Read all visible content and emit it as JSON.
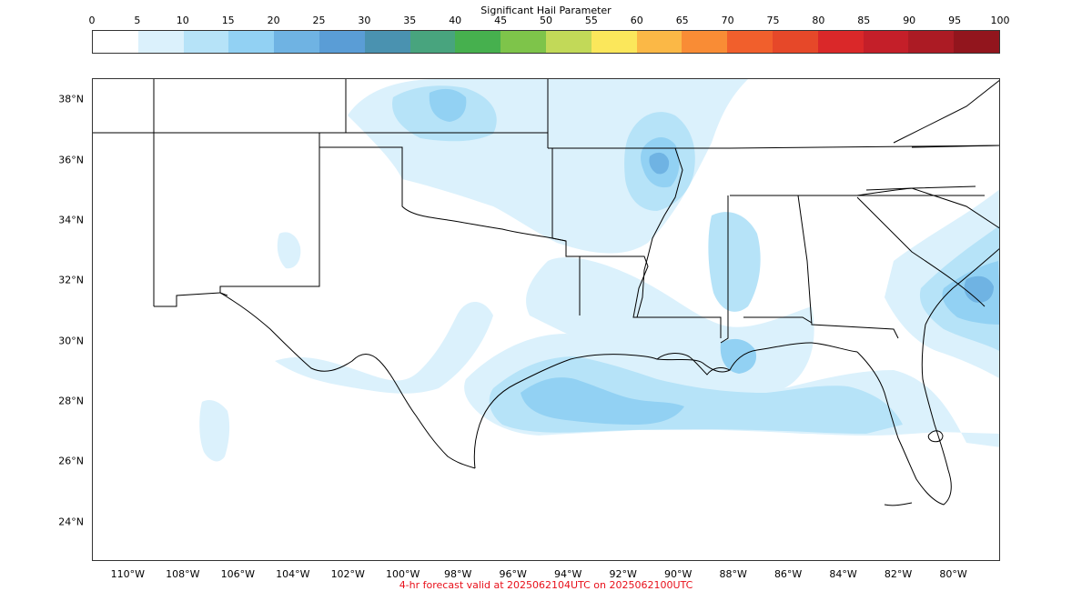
{
  "colorbar": {
    "title": "Significant Hail Parameter",
    "ticks": [
      "0",
      "5",
      "10",
      "15",
      "20",
      "25",
      "30",
      "35",
      "40",
      "45",
      "50",
      "55",
      "60",
      "65",
      "70",
      "75",
      "80",
      "85",
      "90",
      "95",
      "100"
    ],
    "colors": [
      "#ffffff",
      "#dbf1fc",
      "#b6e3f8",
      "#92d1f3",
      "#6fb3e3",
      "#5a9dd6",
      "#4a92b0",
      "#48a47e",
      "#46b04e",
      "#7ec44a",
      "#c2d958",
      "#fbe75b",
      "#fbb846",
      "#f98c35",
      "#f15f2c",
      "#e64829",
      "#da2829",
      "#c41f29",
      "#ac1b24",
      "#92151d"
    ]
  },
  "map": {
    "lat_labels": [
      {
        "lat": 38,
        "text": "38°N"
      },
      {
        "lat": 36,
        "text": "36°N"
      },
      {
        "lat": 34,
        "text": "34°N"
      },
      {
        "lat": 32,
        "text": "32°N"
      },
      {
        "lat": 30,
        "text": "30°N"
      },
      {
        "lat": 28,
        "text": "28°N"
      },
      {
        "lat": 26,
        "text": "26°N"
      },
      {
        "lat": 24,
        "text": "24°N"
      }
    ],
    "lon_labels": [
      {
        "lon": -110,
        "text": "110°W"
      },
      {
        "lon": -108,
        "text": "108°W"
      },
      {
        "lon": -106,
        "text": "106°W"
      },
      {
        "lon": -104,
        "text": "104°W"
      },
      {
        "lon": -102,
        "text": "102°W"
      },
      {
        "lon": -100,
        "text": "100°W"
      },
      {
        "lon": -98,
        "text": "98°W"
      },
      {
        "lon": -96,
        "text": "96°W"
      },
      {
        "lon": -94,
        "text": "94°W"
      },
      {
        "lon": -92,
        "text": "92°W"
      },
      {
        "lon": -90,
        "text": "90°W"
      },
      {
        "lon": -88,
        "text": "88°W"
      },
      {
        "lon": -86,
        "text": "86°W"
      },
      {
        "lon": -84,
        "text": "84°W"
      },
      {
        "lon": -82,
        "text": "82°W"
      },
      {
        "lon": -80,
        "text": "80°W"
      }
    ],
    "extent": {
      "lon_min": -111.3,
      "lon_max": -78.3,
      "lat_min": 22.7,
      "lat_max": 38.7
    }
  },
  "footer": {
    "text": "4-hr forecast valid at 2025062104UTC on 2025062100UTC"
  }
}
